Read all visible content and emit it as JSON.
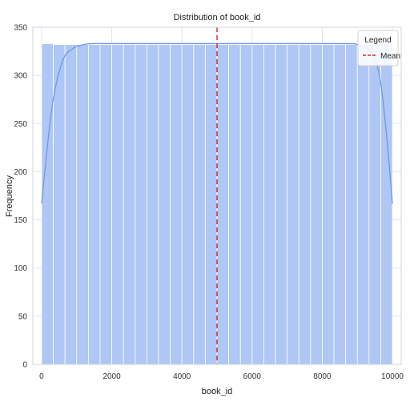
{
  "chart_data": {
    "type": "bar",
    "title": "Distribution of book_id",
    "xlabel": "book_id",
    "ylabel": "Frequency",
    "xlim": [
      -250,
      10250
    ],
    "ylim": [
      0,
      350
    ],
    "x_ticks": [
      "0",
      "2000",
      "4000",
      "6000",
      "8000",
      "10000"
    ],
    "y_ticks": [
      "0",
      "50",
      "100",
      "150",
      "200",
      "250",
      "300",
      "350"
    ],
    "bins": {
      "start": 1,
      "width": 333.3,
      "counts": [
        333,
        332,
        332,
        332,
        332,
        332,
        332,
        332,
        332,
        332,
        332,
        332,
        332,
        332,
        332,
        332,
        332,
        332,
        332,
        332,
        332,
        332,
        332,
        332,
        332,
        332,
        332,
        332,
        332,
        333
      ]
    },
    "kde": {
      "x": [
        1,
        300,
        600,
        900,
        1200,
        1500,
        2000,
        5000,
        8500,
        9000,
        9300,
        9600,
        9800,
        10000
      ],
      "y": [
        167,
        268,
        315,
        328,
        332,
        333,
        333,
        333,
        333,
        332,
        328,
        305,
        250,
        167
      ]
    },
    "mean_line": {
      "value": 5000.5,
      "label": "Mean",
      "color": "#d62728"
    },
    "legend": {
      "title": "Legend",
      "entries": [
        "Mean"
      ],
      "position": "top-right"
    },
    "grid": true,
    "colors": {
      "bar_fill": "#aec7f4",
      "bar_edge": "#ffffff",
      "kde_line": "#6f97e6",
      "grid": "#dfe3ea"
    }
  }
}
